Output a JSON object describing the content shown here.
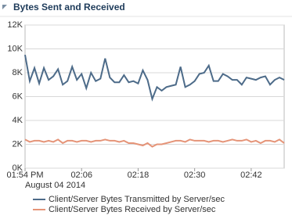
{
  "chart_data": {
    "type": "line",
    "title": "Bytes Sent and Received",
    "x_date_label": "August 04 2014",
    "x": [
      "2014-08-04T13:54",
      "2014-08-04T13:55",
      "2014-08-04T13:56",
      "2014-08-04T13:57",
      "2014-08-04T13:58",
      "2014-08-04T13:59",
      "2014-08-04T14:00",
      "2014-08-04T14:01",
      "2014-08-04T14:02",
      "2014-08-04T14:03",
      "2014-08-04T14:04",
      "2014-08-04T14:05",
      "2014-08-04T14:06",
      "2014-08-04T14:07",
      "2014-08-04T14:08",
      "2014-08-04T14:09",
      "2014-08-04T14:10",
      "2014-08-04T14:11",
      "2014-08-04T14:12",
      "2014-08-04T14:13",
      "2014-08-04T14:14",
      "2014-08-04T14:15",
      "2014-08-04T14:16",
      "2014-08-04T14:17",
      "2014-08-04T14:18",
      "2014-08-04T14:19",
      "2014-08-04T14:20",
      "2014-08-04T14:21",
      "2014-08-04T14:22",
      "2014-08-04T14:23",
      "2014-08-04T14:24",
      "2014-08-04T14:25",
      "2014-08-04T14:26",
      "2014-08-04T14:27",
      "2014-08-04T14:28",
      "2014-08-04T14:29",
      "2014-08-04T14:30",
      "2014-08-04T14:31",
      "2014-08-04T14:32",
      "2014-08-04T14:33",
      "2014-08-04T14:34",
      "2014-08-04T14:35",
      "2014-08-04T14:36",
      "2014-08-04T14:37",
      "2014-08-04T14:38",
      "2014-08-04T14:39",
      "2014-08-04T14:40",
      "2014-08-04T14:41",
      "2014-08-04T14:42",
      "2014-08-04T14:43",
      "2014-08-04T14:44",
      "2014-08-04T14:45",
      "2014-08-04T14:46",
      "2014-08-04T14:47",
      "2014-08-04T14:48",
      "2014-08-04T14:49"
    ],
    "xlim": [
      "2014-08-04T13:54",
      "2014-08-04T14:49"
    ],
    "xticks": [
      {
        "value": "2014-08-04T13:54",
        "label": "01:54 PM"
      },
      {
        "value": "2014-08-04T14:06",
        "label": "02:06"
      },
      {
        "value": "2014-08-04T14:18",
        "label": "02:18"
      },
      {
        "value": "2014-08-04T14:30",
        "label": "02:30"
      },
      {
        "value": "2014-08-04T14:42",
        "label": "02:42"
      }
    ],
    "ylim": [
      0,
      12000
    ],
    "yticks": [
      {
        "value": 0,
        "label": "0K"
      },
      {
        "value": 2000,
        "label": "2K"
      },
      {
        "value": 4000,
        "label": "4K"
      },
      {
        "value": 6000,
        "label": "6K"
      },
      {
        "value": 8000,
        "label": "8K"
      },
      {
        "value": 10000,
        "label": "10K"
      },
      {
        "value": 12000,
        "label": "12K"
      }
    ],
    "grid": true,
    "series": [
      {
        "name": "Client/Server Bytes Transmitted by Server/sec",
        "color": "#4d6b89",
        "values": [
          9500,
          7300,
          8400,
          7100,
          8400,
          7400,
          7700,
          8300,
          7000,
          7300,
          8500,
          7400,
          7900,
          6700,
          8000,
          7300,
          7500,
          9200,
          7600,
          7200,
          7200,
          7800,
          7200,
          7300,
          7100,
          8200,
          7400,
          5800,
          6800,
          6500,
          6800,
          6900,
          7000,
          8500,
          6800,
          7000,
          7300,
          7900,
          8000,
          8600,
          7300,
          7300,
          7900,
          7700,
          7400,
          7400,
          7000,
          7600,
          7500,
          7400,
          7600,
          7700,
          7000,
          7400,
          7600,
          7400
        ]
      },
      {
        "name": "Client/Server Bytes Received by Server/sec",
        "color": "#e59478",
        "values": [
          2400,
          2200,
          2300,
          2300,
          2200,
          2300,
          2200,
          2400,
          2100,
          2300,
          2300,
          2200,
          2300,
          2300,
          2200,
          2300,
          2300,
          2400,
          2300,
          2300,
          2200,
          2300,
          2100,
          2100,
          2000,
          1900,
          2100,
          1800,
          2000,
          2000,
          2100,
          2200,
          2300,
          2300,
          2200,
          2400,
          2300,
          2300,
          2300,
          2200,
          2300,
          2300,
          2200,
          2300,
          2400,
          2300,
          2300,
          2400,
          2200,
          2300,
          2100,
          2300,
          2300,
          2200,
          2400,
          2100
        ]
      }
    ]
  }
}
